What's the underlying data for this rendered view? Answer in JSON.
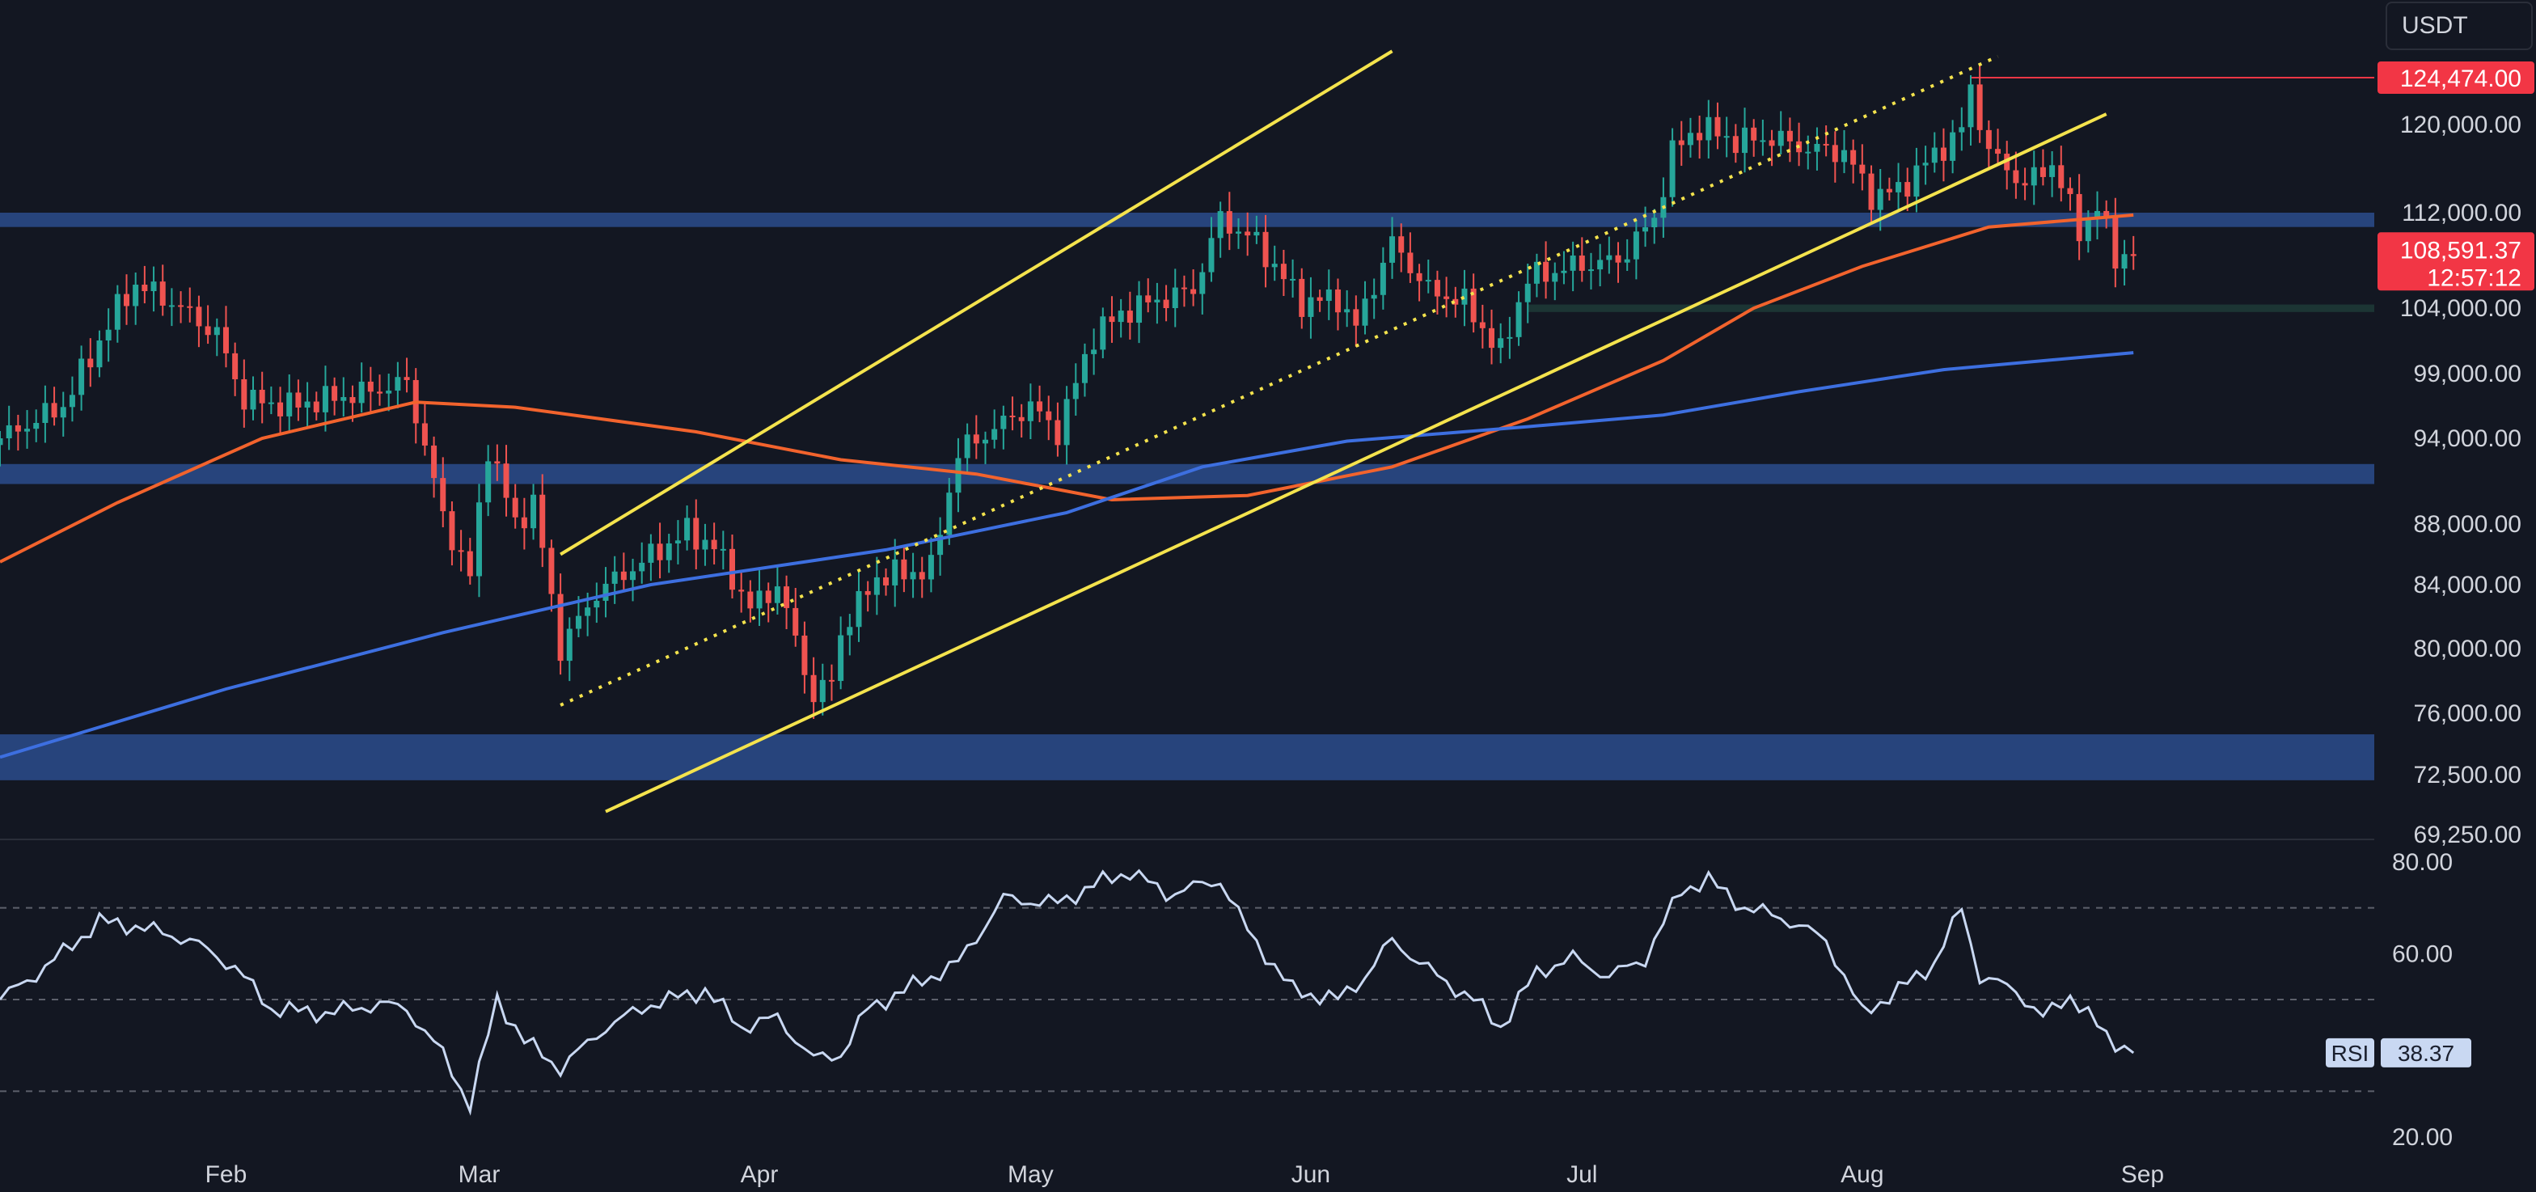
{
  "quote_currency": "USDT",
  "last_price": {
    "value": 108591.37,
    "label": "108,591.37",
    "countdown": "12:57:12",
    "color": "#f23645"
  },
  "ath_marker": {
    "value": 124474,
    "label": "124,474.00",
    "color": "#f23645"
  },
  "colors": {
    "background": "#131722",
    "up_candle": "#26a69a",
    "down_candle": "#ef5350",
    "zone": "#2b4c8c",
    "zone_green": "#1f3b37",
    "ma_short": "#f2632d",
    "ma_long": "#3d6fe0",
    "channel": "#f4e34d",
    "rsi_line": "#c9d8f2",
    "axis_text": "#d1d4dc"
  },
  "chart_data": [
    {
      "type": "candlestick",
      "y_axis_ticks": [
        {
          "value": 120000,
          "label": "120,000.00"
        },
        {
          "value": 112000,
          "label": "112,000.00"
        },
        {
          "value": 104000,
          "label": "104,000.00"
        },
        {
          "value": 99000,
          "label": "99,000.00"
        },
        {
          "value": 94000,
          "label": "94,000.00"
        },
        {
          "value": 88000,
          "label": "88,000.00"
        },
        {
          "value": 84000,
          "label": "84,000.00"
        },
        {
          "value": 80000,
          "label": "80,000.00"
        },
        {
          "value": 76000,
          "label": "76,000.00"
        },
        {
          "value": 72500,
          "label": "72,500.00"
        },
        {
          "value": 69250,
          "label": "69,250.00"
        }
      ],
      "x_axis_ticks": [
        {
          "label": "Feb",
          "date": "2025-02-01"
        },
        {
          "label": "Mar",
          "date": "2025-03-01"
        },
        {
          "label": "Apr",
          "date": "2025-04-01"
        },
        {
          "label": "May",
          "date": "2025-05-01"
        },
        {
          "label": "Jun",
          "date": "2025-06-01"
        },
        {
          "label": "Jul",
          "date": "2025-07-01"
        },
        {
          "label": "Aug",
          "date": "2025-08-01"
        },
        {
          "label": "Sep",
          "date": "2025-09-01"
        }
      ],
      "x_range": [
        "2025-01-07",
        "2025-09-10"
      ],
      "price_anchors": [
        [
          "2025-01-07",
          94000
        ],
        [
          "2025-01-14",
          96500
        ],
        [
          "2025-01-20",
          104000
        ],
        [
          "2025-01-22",
          106000
        ],
        [
          "2025-01-26",
          104500
        ],
        [
          "2025-01-31",
          102000
        ],
        [
          "2025-02-03",
          97000
        ],
        [
          "2025-02-08",
          96500
        ],
        [
          "2025-02-16",
          97500
        ],
        [
          "2025-02-21",
          98300
        ],
        [
          "2025-02-25",
          88500
        ],
        [
          "2025-02-28",
          84500
        ],
        [
          "2025-03-02",
          93500
        ],
        [
          "2025-03-05",
          88000
        ],
        [
          "2025-03-07",
          89500
        ],
        [
          "2025-03-10",
          80000
        ],
        [
          "2025-03-14",
          83500
        ],
        [
          "2025-03-19",
          85500
        ],
        [
          "2025-03-24",
          87500
        ],
        [
          "2025-03-27",
          86500
        ],
        [
          "2025-03-31",
          82500
        ],
        [
          "2025-04-03",
          84000
        ],
        [
          "2025-04-07",
          77000
        ],
        [
          "2025-04-09",
          78000
        ],
        [
          "2025-04-10",
          81000
        ],
        [
          "2025-04-14",
          84500
        ],
        [
          "2025-04-20",
          85000
        ],
        [
          "2025-04-23",
          93000
        ],
        [
          "2025-05-01",
          96500
        ],
        [
          "2025-05-04",
          94500
        ],
        [
          "2025-05-08",
          102000
        ],
        [
          "2025-05-12",
          104000
        ],
        [
          "2025-05-19",
          105500
        ],
        [
          "2025-05-22",
          111500
        ],
        [
          "2025-05-26",
          109500
        ],
        [
          "2025-05-31",
          104500
        ],
        [
          "2025-06-04",
          104800
        ],
        [
          "2025-06-06",
          102500
        ],
        [
          "2025-06-10",
          109500
        ],
        [
          "2025-06-14",
          105500
        ],
        [
          "2025-06-18",
          104500
        ],
        [
          "2025-06-22",
          100500
        ],
        [
          "2025-06-25",
          106500
        ],
        [
          "2025-06-30",
          107500
        ],
        [
          "2025-07-05",
          108000
        ],
        [
          "2025-07-09",
          111500
        ],
        [
          "2025-07-11",
          117500
        ],
        [
          "2025-07-14",
          119800
        ],
        [
          "2025-07-18",
          118500
        ],
        [
          "2025-07-22",
          118800
        ],
        [
          "2025-07-26",
          117800
        ],
        [
          "2025-07-30",
          117500
        ],
        [
          "2025-08-02",
          113500
        ],
        [
          "2025-08-05",
          114000
        ],
        [
          "2025-08-08",
          116500
        ],
        [
          "2025-08-12",
          119500
        ],
        [
          "2025-08-13",
          123500
        ],
        [
          "2025-08-15",
          117500
        ],
        [
          "2025-08-19",
          114500
        ],
        [
          "2025-08-22",
          116500
        ],
        [
          "2025-08-25",
          110500
        ],
        [
          "2025-08-27",
          112500
        ],
        [
          "2025-08-29",
          108300
        ],
        [
          "2025-08-31",
          108591
        ]
      ],
      "ma_short": [
        [
          "2025-01-07",
          85500
        ],
        [
          "2025-01-20",
          89500
        ],
        [
          "2025-02-05",
          94000
        ],
        [
          "2025-02-22",
          96800
        ],
        [
          "2025-03-05",
          96400
        ],
        [
          "2025-03-25",
          94500
        ],
        [
          "2025-04-10",
          92500
        ],
        [
          "2025-04-25",
          91500
        ],
        [
          "2025-05-10",
          89700
        ],
        [
          "2025-05-25",
          90000
        ],
        [
          "2025-06-10",
          92000
        ],
        [
          "2025-06-25",
          95500
        ],
        [
          "2025-07-10",
          100000
        ],
        [
          "2025-07-20",
          104000
        ],
        [
          "2025-08-01",
          107500
        ],
        [
          "2025-08-15",
          110800
        ],
        [
          "2025-08-31",
          111800
        ]
      ],
      "ma_long": [
        [
          "2025-01-07",
          73500
        ],
        [
          "2025-02-01",
          77500
        ],
        [
          "2025-02-25",
          81000
        ],
        [
          "2025-03-20",
          84000
        ],
        [
          "2025-04-15",
          86300
        ],
        [
          "2025-05-05",
          88800
        ],
        [
          "2025-05-20",
          92000
        ],
        [
          "2025-06-05",
          93800
        ],
        [
          "2025-06-25",
          94900
        ],
        [
          "2025-07-10",
          95800
        ],
        [
          "2025-07-25",
          97600
        ],
        [
          "2025-08-10",
          99300
        ],
        [
          "2025-08-31",
          100600
        ]
      ],
      "zones": [
        {
          "from": 110800,
          "to": 112000,
          "color": "#2b4c8c"
        },
        {
          "from": 90800,
          "to": 92200,
          "color": "#2b4c8c"
        },
        {
          "from": 72200,
          "to": 74800,
          "color": "#2b4c8c"
        },
        {
          "from": 103700,
          "to": 104300,
          "color": "#1f3b37",
          "start": "2025-06-25"
        }
      ],
      "trendlines": [
        {
          "style": "solid",
          "from": [
            "2025-03-10",
            86000
          ],
          "to": [
            "2025-06-10",
            127000
          ]
        },
        {
          "style": "dotted",
          "from": [
            "2025-03-10",
            76500
          ],
          "to": [
            "2025-08-16",
            126500
          ]
        },
        {
          "style": "solid",
          "from": [
            "2025-03-15",
            70500
          ],
          "to": [
            "2025-08-28",
            121000
          ]
        }
      ],
      "y_label": "",
      "x_label": ""
    },
    {
      "type": "line",
      "indicator": "RSI",
      "indicator_label": "RSI",
      "current_value": "38.37",
      "y_axis_ticks": [
        {
          "value": 80,
          "label": "80.00"
        },
        {
          "value": 60,
          "label": "60.00"
        },
        {
          "value": 20,
          "label": "20.00"
        }
      ],
      "guide_levels": [
        70,
        50,
        30
      ],
      "anchors": [
        [
          "2025-01-07",
          50
        ],
        [
          "2025-01-12",
          57
        ],
        [
          "2025-01-18",
          67
        ],
        [
          "2025-01-22",
          66
        ],
        [
          "2025-01-28",
          63
        ],
        [
          "2025-02-02",
          57
        ],
        [
          "2025-02-06",
          48
        ],
        [
          "2025-02-12",
          47
        ],
        [
          "2025-02-18",
          49
        ],
        [
          "2025-02-21",
          48
        ],
        [
          "2025-02-25",
          38
        ],
        [
          "2025-02-28",
          27
        ],
        [
          "2025-03-03",
          50
        ],
        [
          "2025-03-06",
          41
        ],
        [
          "2025-03-10",
          35
        ],
        [
          "2025-03-15",
          44
        ],
        [
          "2025-03-20",
          49
        ],
        [
          "2025-03-26",
          52
        ],
        [
          "2025-03-30",
          44
        ],
        [
          "2025-04-03",
          46
        ],
        [
          "2025-04-07",
          37
        ],
        [
          "2025-04-10",
          38
        ],
        [
          "2025-04-13",
          48
        ],
        [
          "2025-04-18",
          53
        ],
        [
          "2025-04-23",
          58
        ],
        [
          "2025-04-28",
          72
        ],
        [
          "2025-05-04",
          71
        ],
        [
          "2025-05-08",
          75
        ],
        [
          "2025-05-12",
          78
        ],
        [
          "2025-05-16",
          73
        ],
        [
          "2025-05-22",
          76
        ],
        [
          "2025-05-25",
          65
        ],
        [
          "2025-05-30",
          52
        ],
        [
          "2025-06-04",
          50
        ],
        [
          "2025-06-07",
          55
        ],
        [
          "2025-06-10",
          63
        ],
        [
          "2025-06-15",
          55
        ],
        [
          "2025-06-19",
          50
        ],
        [
          "2025-06-22",
          44
        ],
        [
          "2025-06-26",
          56
        ],
        [
          "2025-06-30",
          59
        ],
        [
          "2025-07-04",
          55
        ],
        [
          "2025-07-08",
          59
        ],
        [
          "2025-07-12",
          74
        ],
        [
          "2025-07-15",
          76
        ],
        [
          "2025-07-19",
          70
        ],
        [
          "2025-07-23",
          68
        ],
        [
          "2025-07-28",
          63
        ],
        [
          "2025-08-01",
          47
        ],
        [
          "2025-08-05",
          52
        ],
        [
          "2025-08-09",
          58
        ],
        [
          "2025-08-12",
          70
        ],
        [
          "2025-08-14",
          55
        ],
        [
          "2025-08-18",
          52
        ],
        [
          "2025-08-21",
          46
        ],
        [
          "2025-08-24",
          51
        ],
        [
          "2025-08-28",
          42
        ],
        [
          "2025-08-31",
          38.37
        ]
      ]
    }
  ]
}
